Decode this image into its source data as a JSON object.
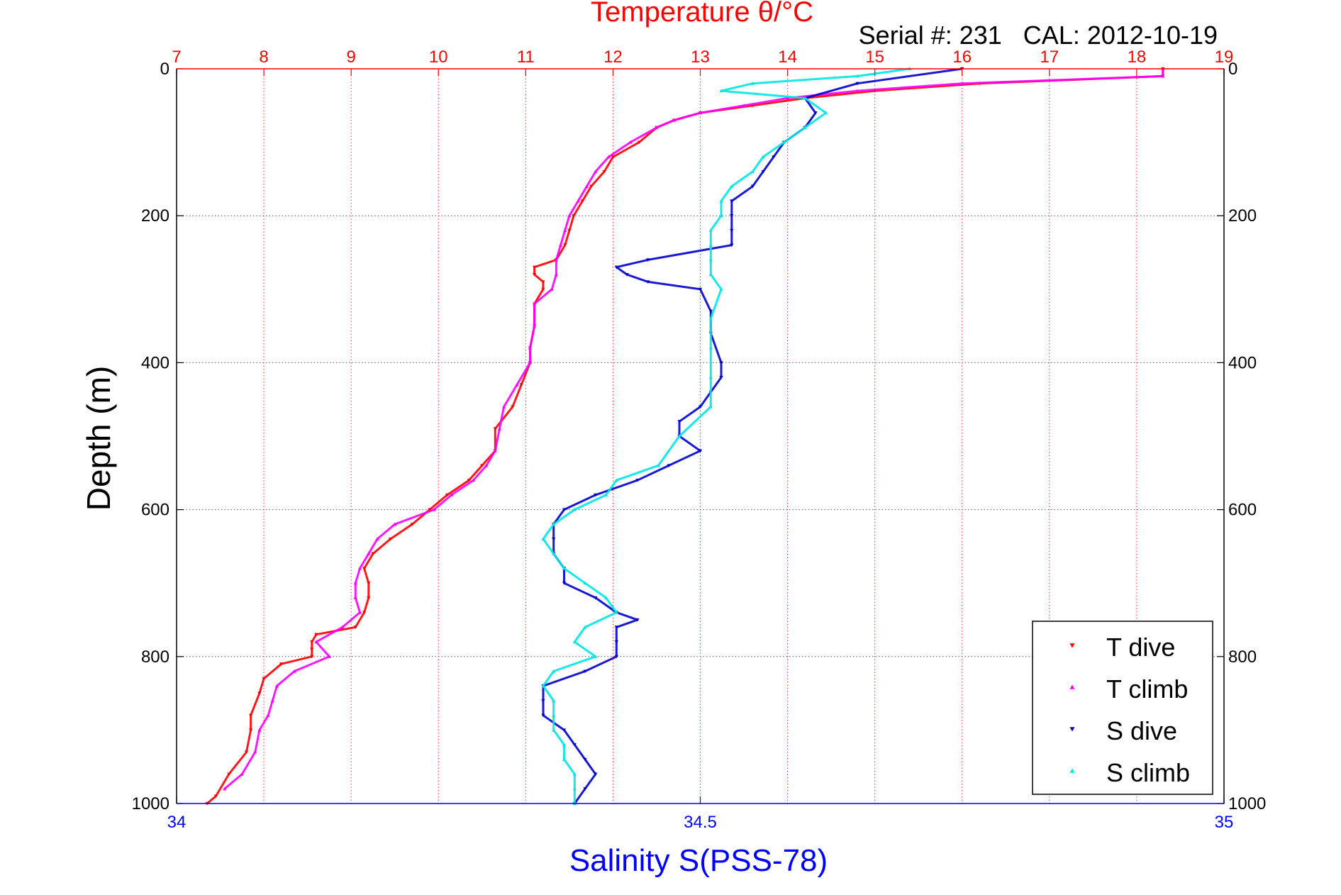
{
  "chart_data": {
    "type": "scatter",
    "title": "Temperature θ/°C",
    "subtitle": "Serial #: 231   CAL: 2012-10-19",
    "ylabel": "Depth (m)",
    "xlabel_bottom": "Salinity S(PSS-78)",
    "xlabel_top": "Temperature θ/°C",
    "temperature_axis": {
      "range": [
        7,
        19
      ],
      "ticks": [
        "7",
        "8",
        "9",
        "10",
        "11",
        "12",
        "13",
        "14",
        "15",
        "16",
        "17",
        "18",
        "19"
      ],
      "color": "#ff0000"
    },
    "salinity_axis": {
      "range": [
        34,
        35
      ],
      "ticks": [
        "34",
        "34.5",
        "35"
      ],
      "tick_values": [
        34,
        34.5,
        35
      ],
      "color": "#0000ff"
    },
    "depth_axis": {
      "range": [
        0,
        1000
      ],
      "ticks": [
        "0",
        "200",
        "400",
        "600",
        "800",
        "1000"
      ],
      "tick_values": [
        0,
        200,
        400,
        600,
        800,
        1000
      ],
      "reversed": true
    },
    "grid": true,
    "legend": {
      "placement": "bottom-right",
      "entries": [
        "T dive",
        "T climb",
        "S dive",
        "S climb"
      ]
    },
    "series": [
      {
        "name": "T dive",
        "axis": "temperature",
        "color": "#ff0000",
        "marker": "triangle-down",
        "depth": [
          0,
          10,
          20,
          30,
          40,
          50,
          60,
          70,
          80,
          100,
          120,
          140,
          160,
          180,
          200,
          220,
          240,
          260,
          270,
          280,
          290,
          300,
          320,
          350,
          380,
          400,
          430,
          460,
          490,
          520,
          540,
          560,
          580,
          600,
          620,
          640,
          660,
          680,
          700,
          720,
          740,
          760,
          770,
          780,
          790,
          800,
          810,
          830,
          850,
          880,
          900,
          930,
          960,
          990,
          1000
        ],
        "values": [
          18.3,
          18.3,
          16.2,
          15.0,
          14.2,
          13.6,
          13.0,
          12.7,
          12.5,
          12.3,
          12.0,
          11.9,
          11.75,
          11.65,
          11.55,
          11.5,
          11.45,
          11.35,
          11.1,
          11.1,
          11.2,
          11.2,
          11.1,
          11.1,
          11.05,
          11.05,
          10.95,
          10.85,
          10.65,
          10.65,
          10.5,
          10.35,
          10.1,
          9.9,
          9.7,
          9.45,
          9.25,
          9.15,
          9.2,
          9.2,
          9.15,
          9.05,
          8.6,
          8.55,
          8.55,
          8.55,
          8.2,
          8.0,
          7.95,
          7.85,
          7.85,
          7.8,
          7.6,
          7.45,
          7.35
        ]
      },
      {
        "name": "T climb",
        "axis": "temperature",
        "color": "#ff00ff",
        "marker": "triangle-up",
        "depth": [
          0,
          10,
          20,
          30,
          40,
          50,
          60,
          70,
          80,
          100,
          120,
          140,
          160,
          180,
          200,
          220,
          240,
          260,
          280,
          300,
          320,
          350,
          380,
          400,
          430,
          460,
          490,
          520,
          540,
          560,
          580,
          600,
          620,
          640,
          660,
          680,
          700,
          720,
          740,
          760,
          780,
          800,
          820,
          840,
          860,
          880,
          900,
          930,
          960,
          980
        ],
        "values": [
          18.3,
          18.3,
          16.0,
          14.8,
          14.0,
          13.5,
          13.0,
          12.7,
          12.5,
          12.2,
          11.95,
          11.8,
          11.7,
          11.6,
          11.5,
          11.45,
          11.4,
          11.35,
          11.35,
          11.3,
          11.1,
          11.1,
          11.05,
          11.05,
          10.9,
          10.75,
          10.7,
          10.65,
          10.55,
          10.4,
          10.15,
          9.95,
          9.5,
          9.3,
          9.2,
          9.1,
          9.05,
          9.05,
          9.1,
          8.9,
          8.6,
          8.75,
          8.35,
          8.15,
          8.1,
          8.05,
          7.95,
          7.9,
          7.75,
          7.55
        ]
      },
      {
        "name": "S dive",
        "axis": "salinity",
        "color": "#0000cc",
        "marker": "triangle-down",
        "depth": [
          0,
          20,
          40,
          60,
          80,
          100,
          120,
          140,
          160,
          180,
          200,
          220,
          240,
          260,
          270,
          280,
          290,
          300,
          330,
          360,
          400,
          420,
          440,
          460,
          480,
          500,
          520,
          540,
          560,
          580,
          600,
          620,
          640,
          660,
          680,
          700,
          720,
          740,
          750,
          760,
          780,
          800,
          820,
          840,
          860,
          880,
          900,
          920,
          940,
          960,
          980,
          1000
        ],
        "values": [
          34.75,
          34.65,
          34.6,
          34.61,
          34.6,
          34.58,
          34.57,
          34.56,
          34.55,
          34.53,
          34.53,
          34.53,
          34.53,
          34.45,
          34.42,
          34.43,
          34.45,
          34.5,
          34.51,
          34.51,
          34.52,
          34.52,
          34.51,
          34.5,
          34.48,
          34.48,
          34.5,
          34.47,
          34.44,
          34.4,
          34.37,
          34.36,
          34.36,
          34.36,
          34.37,
          34.37,
          34.4,
          34.42,
          34.44,
          34.42,
          34.42,
          34.42,
          34.39,
          34.35,
          34.35,
          34.35,
          34.37,
          34.38,
          34.39,
          34.4,
          34.39,
          34.38
        ]
      },
      {
        "name": "S climb",
        "axis": "salinity",
        "color": "#00e5e5",
        "marker": "triangle-up",
        "depth": [
          0,
          10,
          20,
          30,
          40,
          60,
          80,
          100,
          120,
          140,
          160,
          180,
          200,
          220,
          240,
          260,
          280,
          300,
          340,
          380,
          420,
          460,
          500,
          540,
          560,
          580,
          600,
          620,
          640,
          660,
          680,
          700,
          720,
          740,
          760,
          780,
          800,
          820,
          840,
          860,
          880,
          900,
          920,
          940,
          960,
          980,
          1000
        ],
        "values": [
          34.7,
          34.65,
          34.55,
          34.52,
          34.6,
          34.62,
          34.6,
          34.58,
          34.56,
          34.55,
          34.53,
          34.52,
          34.52,
          34.51,
          34.51,
          34.51,
          34.51,
          34.52,
          34.51,
          34.51,
          34.51,
          34.51,
          34.48,
          34.46,
          34.42,
          34.41,
          34.38,
          34.36,
          34.35,
          34.36,
          34.37,
          34.39,
          34.41,
          34.42,
          34.39,
          34.38,
          34.4,
          34.36,
          34.35,
          34.36,
          34.36,
          34.36,
          34.37,
          34.37,
          34.38,
          34.38,
          34.38
        ]
      }
    ]
  }
}
